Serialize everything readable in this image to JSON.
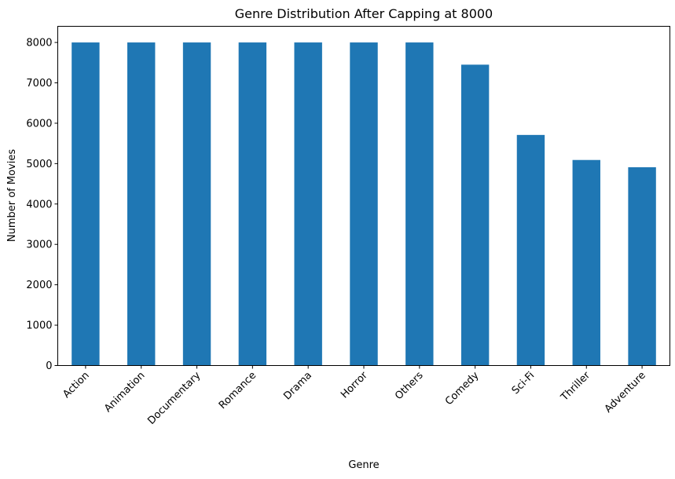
{
  "chart_data": {
    "type": "bar",
    "title": "Genre Distribution After Capping at 8000",
    "xlabel": "Genre",
    "ylabel": "Number of Movies",
    "categories": [
      "Action",
      "Animation",
      "Documentary",
      "Romance",
      "Drama",
      "Horror",
      "Others",
      "Comedy",
      "Sci-Fi",
      "Thriller",
      "Adventure"
    ],
    "values": [
      8000,
      8000,
      8000,
      8000,
      8000,
      8000,
      8000,
      7450,
      5710,
      5090,
      4910
    ],
    "yticks": [
      "0",
      "1000",
      "2000",
      "3000",
      "4000",
      "5000",
      "6000",
      "7000",
      "8000"
    ],
    "ylim": [
      0,
      8400
    ],
    "grid": false,
    "legend": "none",
    "bar_color": "#1f77b4"
  }
}
